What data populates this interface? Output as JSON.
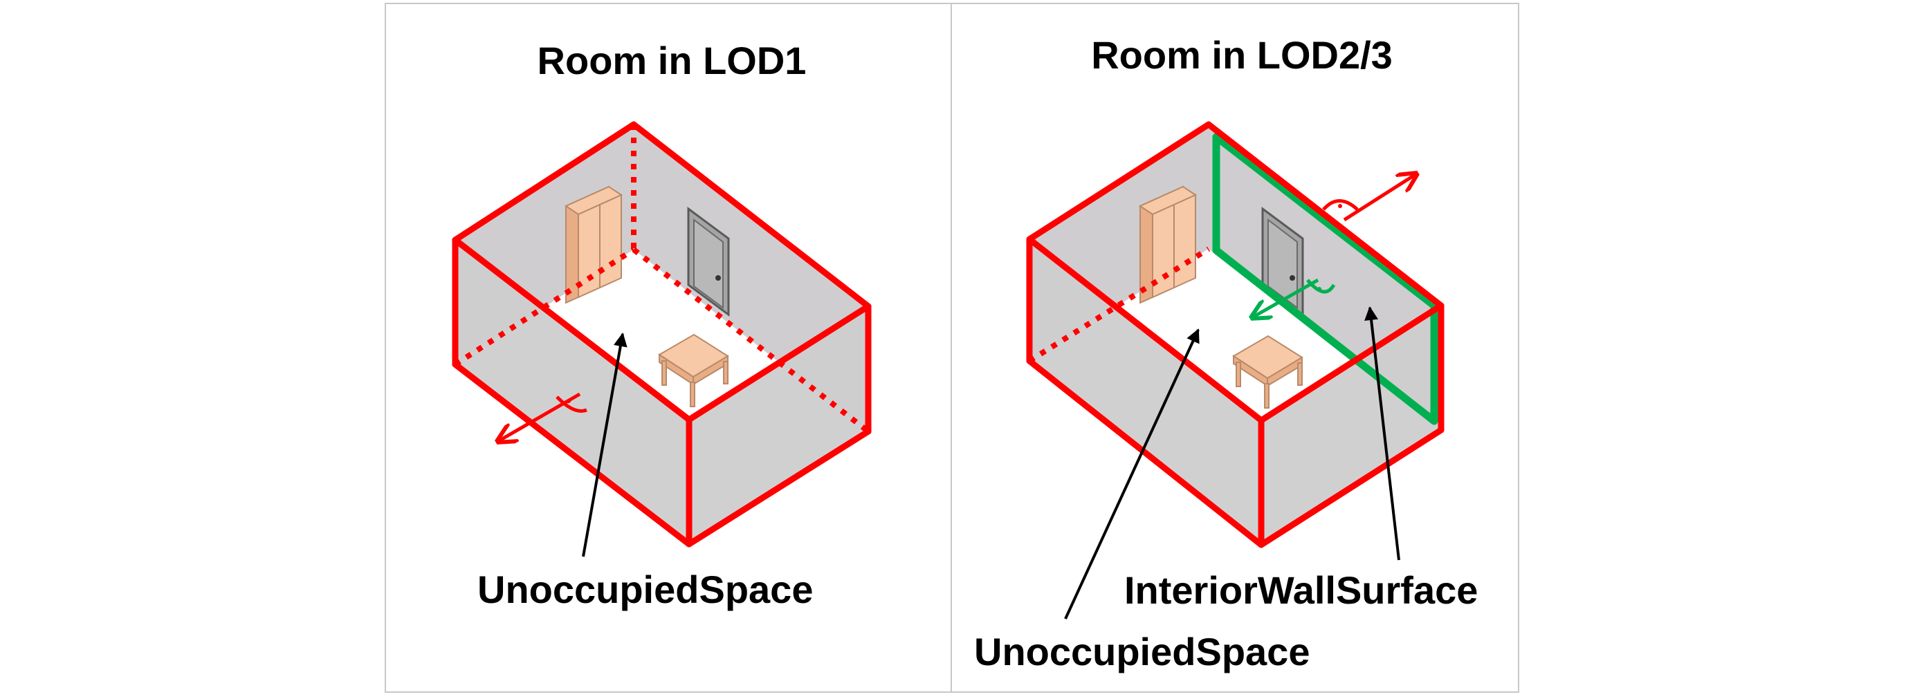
{
  "panels": [
    {
      "title": "Room in LOD1",
      "labels": [
        "UnoccupiedSpace"
      ]
    },
    {
      "title": "Room in LOD2/3",
      "labels": [
        "InteriorWallSurface",
        "UnoccupiedSpace"
      ]
    }
  ],
  "colors": {
    "space_boundary": "#ff0000",
    "wall_surface": "#00b050",
    "wall_fill": "#cfcdcf",
    "furniture": "#f8c9a7",
    "panel_border": "#c8c8c8"
  },
  "icons": [
    "wardrobe-icon",
    "door-icon",
    "table-icon"
  ]
}
